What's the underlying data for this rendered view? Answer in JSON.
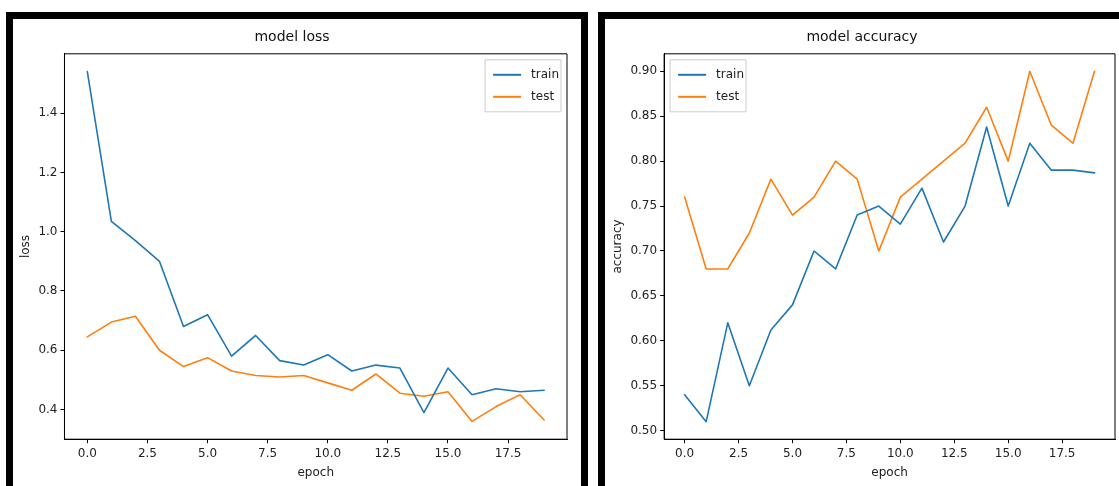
{
  "chart_data": [
    {
      "type": "line",
      "title": "model loss",
      "xlabel": "epoch",
      "ylabel": "loss",
      "x": [
        0,
        1,
        2,
        3,
        4,
        5,
        6,
        7,
        8,
        9,
        10,
        11,
        12,
        13,
        14,
        15,
        16,
        17,
        18,
        19
      ],
      "series": [
        {
          "name": "train",
          "color": "#1f77b4",
          "values": [
            1.54,
            1.035,
            0.97,
            0.9,
            0.68,
            0.72,
            0.58,
            0.65,
            0.565,
            0.55,
            0.585,
            0.53,
            0.55,
            0.54,
            0.39,
            0.54,
            0.45,
            0.47,
            0.46,
            0.465
          ]
        },
        {
          "name": "test",
          "color": "#ff7f0e",
          "values": [
            0.645,
            0.695,
            0.715,
            0.6,
            0.545,
            0.575,
            0.53,
            0.515,
            0.51,
            0.515,
            0.49,
            0.465,
            0.52,
            0.455,
            0.445,
            0.46,
            0.36,
            0.41,
            0.45,
            0.365
          ]
        }
      ],
      "xlim": [
        -0.95,
        19.95
      ],
      "xticks": [
        {
          "value": 0,
          "label": "0.0"
        },
        2.5,
        {
          "value": 5,
          "label": "5.0"
        },
        7.5,
        {
          "value": 10,
          "label": "10.0"
        },
        12.5,
        {
          "value": 15,
          "label": "15.0"
        },
        17.5
      ],
      "ylim": [
        0.3,
        1.6
      ],
      "yticks": [
        0.4,
        0.6,
        0.8,
        {
          "value": 1,
          "label": "1.0"
        },
        1.2,
        1.4
      ],
      "legend": "top right",
      "grid": false,
      "marker": "none",
      "line_style": "solid"
    },
    {
      "type": "line",
      "title": "model accuracy",
      "xlabel": "epoch",
      "ylabel": "accuracy",
      "x": [
        0,
        1,
        2,
        3,
        4,
        5,
        6,
        7,
        8,
        9,
        10,
        11,
        12,
        13,
        14,
        15,
        16,
        17,
        18,
        19
      ],
      "series": [
        {
          "name": "train",
          "color": "#1f77b4",
          "values": [
            0.54,
            0.51,
            0.62,
            0.55,
            0.612,
            0.64,
            0.7,
            0.68,
            0.74,
            0.75,
            0.73,
            0.77,
            0.71,
            0.75,
            0.838,
            0.75,
            0.82,
            0.79,
            0.79,
            0.787
          ]
        },
        {
          "name": "test",
          "color": "#ff7f0e",
          "values": [
            0.76,
            0.68,
            0.68,
            0.72,
            0.78,
            0.74,
            0.76,
            0.8,
            0.78,
            0.7,
            0.76,
            0.78,
            0.8,
            0.82,
            0.86,
            0.8,
            0.9,
            0.84,
            0.82,
            0.9
          ]
        }
      ],
      "xlim": [
        -0.95,
        19.95
      ],
      "xticks": [
        {
          "value": 0,
          "label": "0.0"
        },
        2.5,
        {
          "value": 5,
          "label": "5.0"
        },
        7.5,
        {
          "value": 10,
          "label": "10.0"
        },
        12.5,
        {
          "value": 15,
          "label": "15.0"
        },
        17.5
      ],
      "ylim": [
        0.4905,
        0.9195
      ],
      "yticks": [
        {
          "value": 0.5,
          "label": "0.50"
        },
        0.55,
        {
          "value": 0.6,
          "label": "0.60"
        },
        0.65,
        {
          "value": 0.7,
          "label": "0.70"
        },
        0.75,
        {
          "value": 0.8,
          "label": "0.80"
        },
        0.85,
        {
          "value": 0.9,
          "label": "0.90"
        }
      ],
      "legend": "top left",
      "grid": false,
      "marker": "none",
      "line_style": "solid"
    }
  ]
}
